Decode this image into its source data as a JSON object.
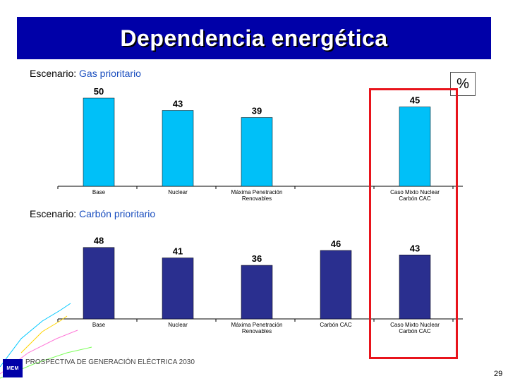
{
  "title": "Dependencia energética",
  "unit_label": "%",
  "footer": "PROSPECTIVA DE GENERACIÓN ELÉCTRICA 2030",
  "page_number": "29",
  "logo_text": "MEM",
  "colors": {
    "banner": "#0000a8",
    "chart1_bar": "#00c0f8",
    "chart2_bar": "#2a2f8f",
    "highlight": "#e8141c",
    "scenario_name": "#1b4fbf"
  },
  "scenarios": [
    {
      "prefix": "Escenario:",
      "name": "Gas prioritario"
    },
    {
      "prefix": "Escenario:",
      "name": "Carbón prioritario"
    }
  ],
  "chart_data": [
    {
      "type": "bar",
      "title": "Escenario: Gas prioritario",
      "categories": [
        "Base",
        "Nuclear",
        "Máxima Penetración Renovables",
        "",
        "Caso Mixto Nuclear Carbón CAC"
      ],
      "category_lines": [
        [
          "Base"
        ],
        [
          "Nuclear"
        ],
        [
          "Máxima Penetración",
          "Renovables"
        ],
        [
          ""
        ],
        [
          "Caso Mixto Nuclear",
          "Carbón CAC"
        ]
      ],
      "values": [
        50,
        43,
        39,
        null,
        45
      ],
      "ylabel": "%",
      "ylim": [
        0,
        55
      ],
      "grid": false,
      "legend": "none"
    },
    {
      "type": "bar",
      "title": "Escenario: Carbón prioritario",
      "categories": [
        "Base",
        "Nuclear",
        "Máxima Penetración Renovables",
        "Carbón CAC",
        "Caso Mixto Nuclear Carbón CAC"
      ],
      "category_lines": [
        [
          "Base"
        ],
        [
          "Nuclear"
        ],
        [
          "Máxima Penetración",
          "Renovables"
        ],
        [
          "Carbón CAC"
        ],
        [
          "Caso Mixto Nuclear",
          "Carbón CAC"
        ]
      ],
      "values": [
        48,
        41,
        36,
        46,
        43
      ],
      "ylabel": "%",
      "ylim": [
        0,
        53
      ],
      "grid": false,
      "legend": "none"
    }
  ]
}
